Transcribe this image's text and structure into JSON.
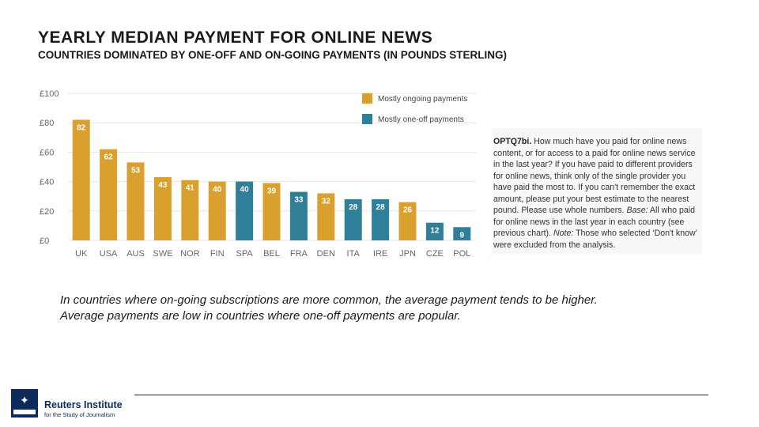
{
  "page": {
    "title": "YEARLY MEDIAN PAYMENT FOR ONLINE NEWS",
    "subtitle": "COUNTRIES DOMINATED BY ONE-OFF AND ON-GOING PAYMENTS (IN POUNDS STERLING)",
    "caption_line1": "In countries where on-going subscriptions are more common, the average payment tends to be higher.",
    "caption_line2": "Average payments are low in countries where one-off payments are popular."
  },
  "note": {
    "question_id": "OPTQ7bi.",
    "question": "How much have you paid for online news content, or for access to a paid for online news service in the last year? If you have paid to different providers for online news, think only of the single provider you have paid the most to. If you can't remember the exact amount, please put your best estimate to the nearest pound. Please use whole numbers.",
    "base_label": "Base:",
    "base_text": "All who paid for online news in the last year in each country (see previous chart).",
    "note_label": "Note:",
    "note_text": "Those who selected ‘Don't know’ were excluded from the analysis."
  },
  "logo": {
    "name": "Reuters Institute",
    "sub": "for the Study of Journalism"
  },
  "colors": {
    "ongoing": "#d9a02e",
    "oneoff": "#2f7f99",
    "grid": "#e6e6e6"
  },
  "chart_data": {
    "type": "bar",
    "title": "YEARLY MEDIAN PAYMENT FOR ONLINE NEWS",
    "subtitle": "COUNTRIES DOMINATED BY ONE-OFF AND ON-GOING PAYMENTS (IN POUNDS STERLING)",
    "ylim": [
      0,
      100
    ],
    "yticks": [
      0,
      20,
      40,
      60,
      80,
      100
    ],
    "ytick_labels": [
      "£0",
      "£20",
      "£40",
      "£60",
      "£80",
      "£100"
    ],
    "grid": true,
    "legend_position": "top-right",
    "legend": [
      {
        "key": "ongoing",
        "label": "Mostly ongoing payments"
      },
      {
        "key": "oneoff",
        "label": "Mostly one-off payments"
      }
    ],
    "categories": [
      "UK",
      "USA",
      "AUS",
      "SWE",
      "NOR",
      "FIN",
      "SPA",
      "BEL",
      "FRA",
      "DEN",
      "ITA",
      "IRE",
      "JPN",
      "CZE",
      "POL"
    ],
    "values": [
      82,
      62,
      53,
      43,
      41,
      40,
      40,
      39,
      33,
      32,
      28,
      28,
      26,
      12,
      9
    ],
    "groups": [
      "ongoing",
      "ongoing",
      "ongoing",
      "ongoing",
      "ongoing",
      "ongoing",
      "oneoff",
      "ongoing",
      "oneoff",
      "ongoing",
      "oneoff",
      "oneoff",
      "ongoing",
      "oneoff",
      "oneoff"
    ]
  }
}
